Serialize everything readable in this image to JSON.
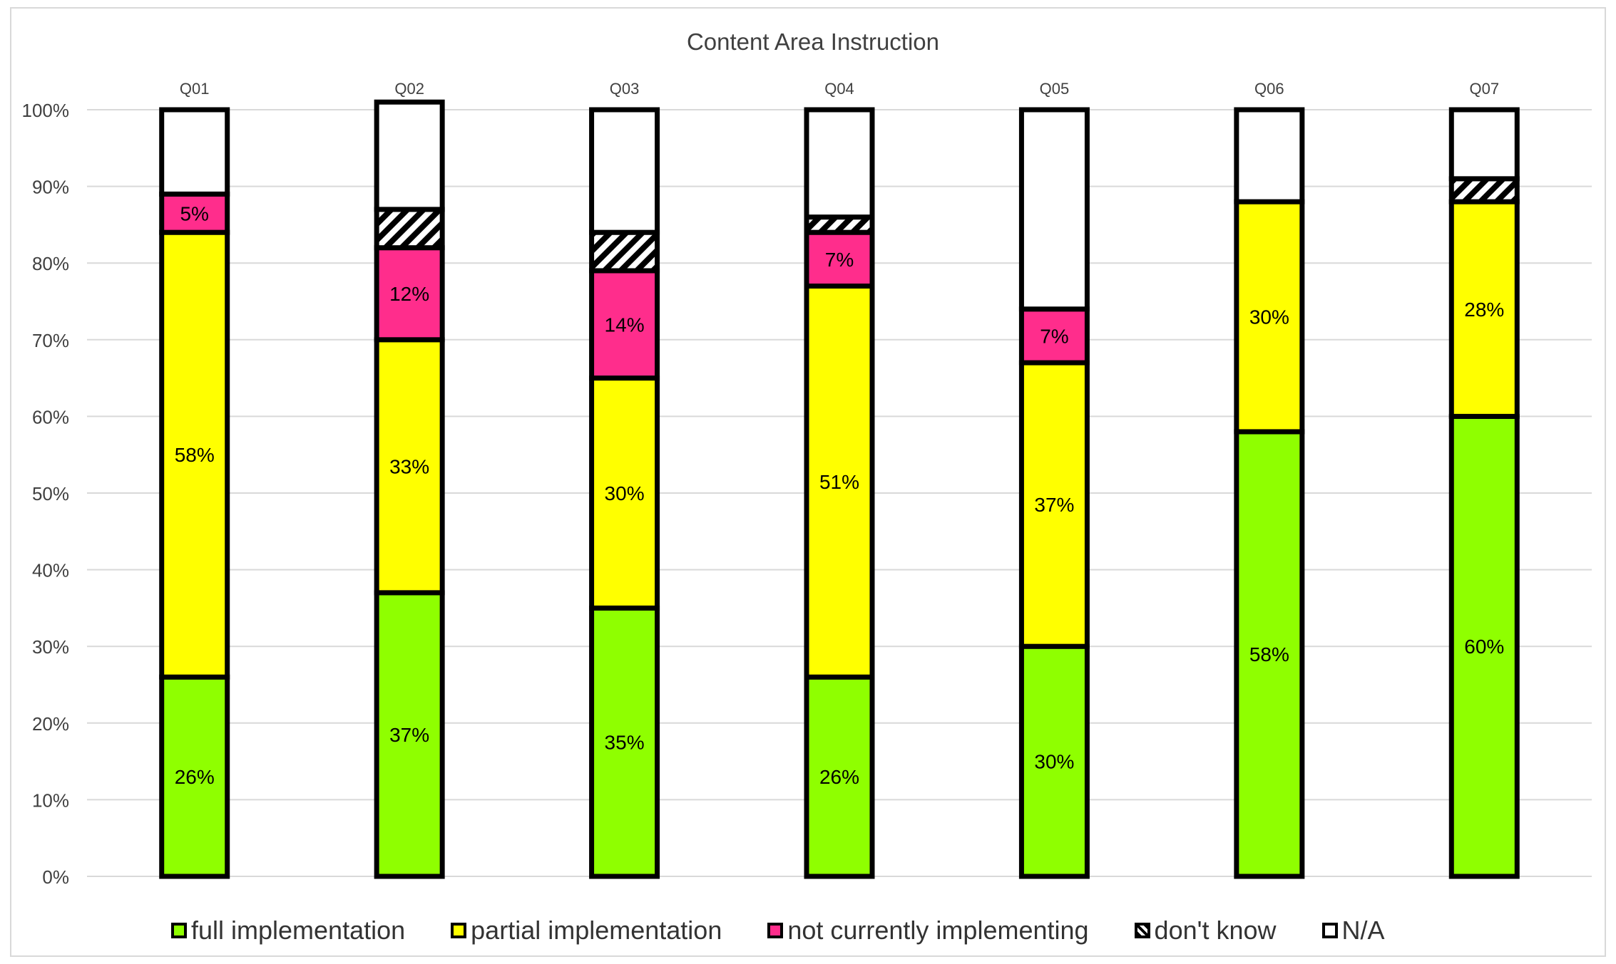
{
  "chart_data": {
    "type": "bar",
    "stacked": "percent",
    "title": "Content Area Instruction",
    "categories": [
      "Q01",
      "Q02",
      "Q03",
      "Q04",
      "Q05",
      "Q06",
      "Q07"
    ],
    "ylim": [
      0,
      100
    ],
    "yticks": [
      "0%",
      "10%",
      "20%",
      "30%",
      "40%",
      "50%",
      "60%",
      "70%",
      "80%",
      "90%",
      "100%"
    ],
    "grid": true,
    "legend_position": "bottom",
    "series": [
      {
        "name": "full implementation",
        "color": "#8fff00",
        "pattern": "solid",
        "values": [
          26,
          37,
          35,
          26,
          30,
          58,
          60
        ],
        "labels": [
          "26%",
          "37%",
          "35%",
          "26%",
          "30%",
          "58%",
          "60%"
        ]
      },
      {
        "name": "partial implementation",
        "color": "#ffff00",
        "pattern": "solid",
        "values": [
          58,
          33,
          30,
          51,
          37,
          30,
          28
        ],
        "labels": [
          "58%",
          "33%",
          "30%",
          "51%",
          "37%",
          "30%",
          "28%"
        ]
      },
      {
        "name": "not currently implementing",
        "color": "#ff2d8c",
        "pattern": "solid",
        "values": [
          5,
          12,
          14,
          7,
          7,
          0,
          0
        ],
        "labels": [
          "5%",
          "12%",
          "14%",
          "7%",
          "7%",
          "0%",
          "0%"
        ]
      },
      {
        "name": "don't know",
        "color": "#ffffff",
        "pattern": "diagonal-stripes",
        "values": [
          0,
          5,
          5,
          2,
          0,
          0,
          3
        ],
        "labels": [
          "",
          "",
          "",
          "",
          "",
          "",
          ""
        ]
      },
      {
        "name": "N/A",
        "color": "#ffffff",
        "pattern": "solid",
        "values": [
          11,
          14,
          16,
          14,
          26,
          12,
          9
        ],
        "labels": [
          "",
          "",
          "",
          "",
          "",
          "",
          ""
        ]
      }
    ]
  }
}
